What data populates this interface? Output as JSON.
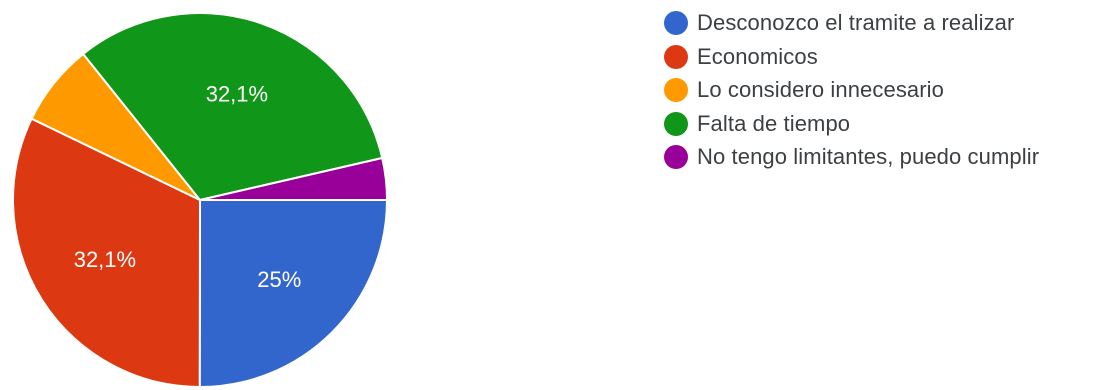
{
  "chart_data": {
    "type": "pie",
    "series": [
      {
        "name": "Desconozco el tramite a realizar",
        "value": 25,
        "color": "#3366cc",
        "label": "25%"
      },
      {
        "name": "Economicos",
        "value": 32.1,
        "color": "#dc3912",
        "label": "32,1%"
      },
      {
        "name": "Lo considero innecesario",
        "value": 7.1,
        "color": "#ff9900",
        "label": ""
      },
      {
        "name": "Falta de tiempo",
        "value": 32.1,
        "color": "#109618",
        "label": "32,1%"
      },
      {
        "name": "No tengo limitantes, puedo cumplir",
        "value": 3.6,
        "color": "#990099",
        "label": ""
      }
    ],
    "legend_position": "right"
  }
}
